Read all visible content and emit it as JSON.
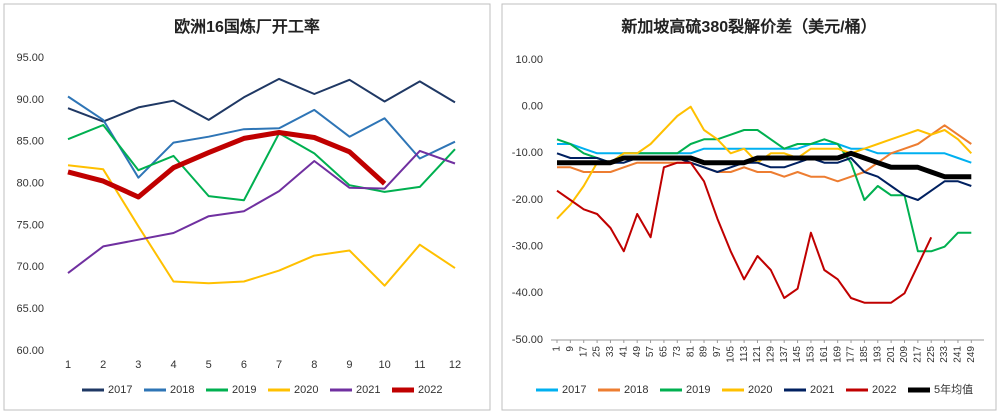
{
  "chart_data": [
    {
      "type": "line",
      "title": "欧洲16国炼厂开工率",
      "categories": [
        "1",
        "2",
        "3",
        "4",
        "5",
        "6",
        "7",
        "8",
        "9",
        "10",
        "11",
        "12"
      ],
      "ylim": [
        60,
        95
      ],
      "yticks": [
        {
          "value": 60,
          "label": "60.00"
        },
        {
          "value": 65,
          "label": "65.00"
        },
        {
          "value": 70,
          "label": "70.00"
        },
        {
          "value": 75,
          "label": "75.00"
        },
        {
          "value": 80,
          "label": "80.00"
        },
        {
          "value": 85,
          "label": "85.00"
        },
        {
          "value": 90,
          "label": "90.00"
        },
        {
          "value": 95,
          "label": "95.00"
        }
      ],
      "series": [
        {
          "name": "2017",
          "color": "#1f3864",
          "values": [
            89,
            87.4,
            89.1,
            89.9,
            87.6,
            90.3,
            92.5,
            90.7,
            92.4,
            89.8,
            92.2,
            89.7
          ]
        },
        {
          "name": "2018",
          "color": "#2e75b6",
          "values": [
            90.4,
            87.6,
            80.7,
            84.9,
            85.6,
            86.5,
            86.6,
            88.8,
            85.6,
            87.8,
            83,
            85
          ]
        },
        {
          "name": "2019",
          "color": "#00b050",
          "values": [
            85.3,
            87,
            81.6,
            83.3,
            78.5,
            78,
            86,
            83.6,
            79.8,
            79,
            79.6,
            84.1
          ]
        },
        {
          "name": "2020",
          "color": "#ffc000",
          "values": [
            82.2,
            81.7,
            74.9,
            68.3,
            68.1,
            68.3,
            69.6,
            71.4,
            72,
            67.8,
            72.7,
            69.9
          ]
        },
        {
          "name": "2021",
          "color": "#7030a0",
          "values": [
            69.3,
            72.5,
            73.3,
            74.1,
            76.1,
            76.7,
            79.1,
            82.7,
            79.5,
            79.4,
            83.9,
            82.4
          ]
        },
        {
          "name": "2022",
          "color": "#c00000",
          "values": [
            81.4,
            80.3,
            78.4,
            81.9,
            83.7,
            85.4,
            86.1,
            85.5,
            83.8,
            80,
            null,
            null
          ]
        }
      ]
    },
    {
      "type": "line",
      "title": "新加坡高硫380裂解价差（美元/桶）",
      "x": [
        1,
        9,
        17,
        25,
        33,
        41,
        49,
        57,
        65,
        73,
        81,
        89,
        97,
        105,
        113,
        121,
        129,
        137,
        145,
        153,
        161,
        169,
        177,
        185,
        193,
        201,
        209,
        217,
        225,
        233,
        241,
        249
      ],
      "xlim": [
        1,
        253
      ],
      "xticks": [
        1,
        9,
        17,
        25,
        33,
        41,
        49,
        57,
        65,
        73,
        81,
        89,
        97,
        105,
        113,
        121,
        129,
        137,
        145,
        153,
        161,
        169,
        177,
        185,
        193,
        201,
        209,
        217,
        225,
        233,
        241,
        249
      ],
      "ylim": [
        -50,
        10
      ],
      "yticks": [
        {
          "value": -50,
          "label": "-50.00"
        },
        {
          "value": -40,
          "label": "-40.00"
        },
        {
          "value": -30,
          "label": "-30.00"
        },
        {
          "value": -20,
          "label": "-20.00"
        },
        {
          "value": -10,
          "label": "-10.00"
        },
        {
          "value": 0,
          "label": "0.00"
        },
        {
          "value": 10,
          "label": "10.00"
        }
      ],
      "series": [
        {
          "name": "2017",
          "color": "#00b0f0",
          "values": [
            -8,
            -8,
            -9,
            -10,
            -10,
            -10,
            -10,
            -10,
            -10,
            -10,
            -10,
            -9,
            -9,
            -9,
            -9,
            -9,
            -9,
            -9,
            -9,
            -8,
            -8,
            -8,
            -9,
            -9,
            -10,
            -10,
            -10,
            -10,
            -10,
            -10,
            -11,
            -12
          ]
        },
        {
          "name": "2018",
          "color": "#ed7d31",
          "values": [
            -13,
            -13,
            -14,
            -14,
            -14,
            -13,
            -12,
            -12,
            -12,
            -12,
            -12,
            -13,
            -14,
            -14,
            -13,
            -14,
            -14,
            -15,
            -14,
            -15,
            -15,
            -16,
            -15,
            -14,
            -12,
            -10,
            -9,
            -8,
            -6,
            -4,
            -6,
            -8
          ]
        },
        {
          "name": "2019",
          "color": "#00b050",
          "values": [
            -7,
            -8,
            -10,
            -11,
            -12,
            -10,
            -10,
            -10,
            -10,
            -10,
            -8,
            -7,
            -7,
            -6,
            -5,
            -5,
            -7,
            -9,
            -8,
            -8,
            -7,
            -8,
            -12,
            -20,
            -17,
            -19,
            -19,
            -31,
            -31,
            -30,
            -27,
            -27
          ]
        },
        {
          "name": "2020",
          "color": "#ffc000",
          "values": [
            -24,
            -21,
            -17,
            -12,
            -12,
            -10,
            -10,
            -8,
            -5,
            -2,
            0,
            -5,
            -7,
            -10,
            -9,
            -12,
            -10,
            -10,
            -11,
            -9,
            -9,
            -9,
            -10,
            -9,
            -8,
            -7,
            -6,
            -5,
            -6,
            -5,
            -7,
            -10
          ]
        },
        {
          "name": "2021",
          "color": "#002060",
          "values": [
            -10,
            -11,
            -11,
            -11,
            -12,
            -12,
            -11,
            -11,
            -11,
            -11,
            -12,
            -13,
            -14,
            -13,
            -12,
            -12,
            -13,
            -13,
            -12,
            -11,
            -12,
            -12,
            -11,
            -14,
            -15,
            -17,
            -19,
            -20,
            -18,
            -16,
            -16,
            -17
          ]
        },
        {
          "name": "2022",
          "color": "#c00000",
          "values": [
            -18,
            -20,
            -22,
            -23,
            -26,
            -31,
            -23,
            -28,
            -13,
            -12,
            -12,
            -16,
            -24,
            -31,
            -37,
            -32,
            -35,
            -41,
            -39,
            -27,
            -35,
            -37,
            -41,
            -42,
            -42,
            -42,
            -40,
            -34,
            -28,
            null,
            null,
            null
          ]
        },
        {
          "name": "5年均值",
          "color": "#000000",
          "values": [
            -12,
            -12,
            -12,
            -12,
            -12,
            -11,
            -11,
            -11,
            -11,
            -11,
            -11,
            -12,
            -12,
            -12,
            -12,
            -11,
            -11,
            -11,
            -11,
            -11,
            -11,
            -11,
            -10,
            -11,
            -12,
            -13,
            -13,
            -13,
            -14,
            -15,
            -15,
            -15
          ]
        }
      ]
    }
  ]
}
